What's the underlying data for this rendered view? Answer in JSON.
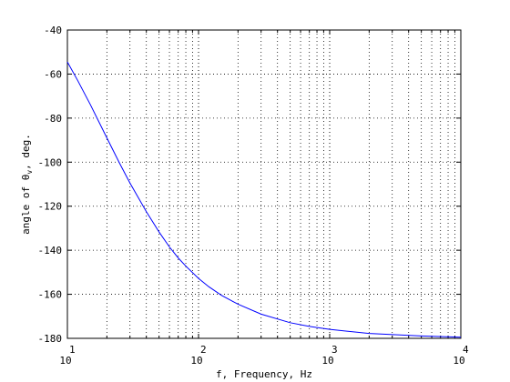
{
  "chart_data": {
    "type": "line",
    "title": "",
    "xlabel": "f, Frequency, Hz",
    "ylabel_prefix": "angle of ",
    "ylabel_symbol": "θ",
    "ylabel_subscript": "v",
    "ylabel_suffix": ", deg.",
    "xscale": "log",
    "xlim": [
      10,
      10000
    ],
    "ylim": [
      -180,
      -40
    ],
    "grid": true,
    "xticks": [
      {
        "value": 10,
        "base": "10",
        "exp": "1"
      },
      {
        "value": 100,
        "base": "10",
        "exp": "2"
      },
      {
        "value": 1000,
        "base": "10",
        "exp": "3"
      },
      {
        "value": 10000,
        "base": "10",
        "exp": "4"
      }
    ],
    "yticks": [
      "-40",
      "-60",
      "-80",
      "-100",
      "-120",
      "-140",
      "-160",
      "-180"
    ],
    "series": [
      {
        "color": "#0000ff",
        "x": [
          10,
          12,
          15,
          20,
          25,
          30,
          40,
          50,
          60,
          70,
          80,
          100,
          120,
          150,
          200,
          300,
          500,
          700,
          1000,
          2000,
          5000,
          10000
        ],
        "y": [
          -54.5,
          -63,
          -74,
          -89,
          -100.5,
          -109.5,
          -122.5,
          -131.7,
          -138.5,
          -143.5,
          -147.2,
          -152.8,
          -156.6,
          -160.5,
          -164.5,
          -169,
          -172.9,
          -174.6,
          -175.9,
          -177.8,
          -178.9,
          -179.5
        ]
      }
    ]
  }
}
